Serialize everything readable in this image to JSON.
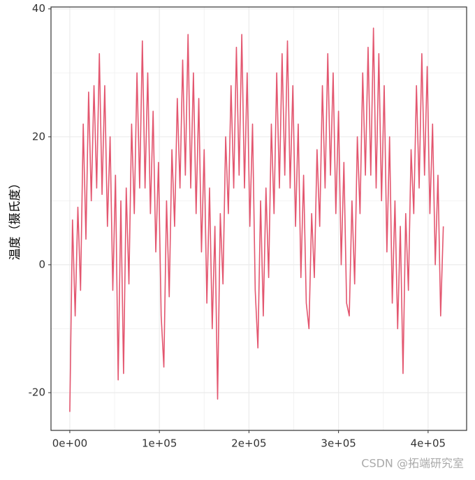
{
  "chart_data": {
    "type": "line",
    "ylabel": "温度（摄氏度）",
    "watermark": "CSDN @拓端研究室",
    "color": "#e3566f",
    "grid": true,
    "xlim": [
      -21000,
      443000
    ],
    "ylim": [
      -25.9,
      40.3
    ],
    "xticks": [
      {
        "value": 0,
        "label": "0e+00"
      },
      {
        "value": 100000,
        "label": "1e+05"
      },
      {
        "value": 200000,
        "label": "2e+05"
      },
      {
        "value": 300000,
        "label": "3e+05"
      },
      {
        "value": 400000,
        "label": "4e+05"
      }
    ],
    "yticks": [
      -20,
      0,
      20,
      40
    ],
    "x": [
      0,
      3000,
      6000,
      9000,
      12000,
      15000,
      18000,
      21000,
      24000,
      27000,
      30000,
      33000,
      36000,
      39000,
      42000,
      45000,
      48000,
      51000,
      54000,
      57000,
      60000,
      63000,
      66000,
      69000,
      72000,
      75000,
      78000,
      81000,
      84000,
      87000,
      90000,
      93000,
      96000,
      99000,
      102000,
      105000,
      108000,
      111000,
      114000,
      117000,
      120000,
      123000,
      126000,
      129000,
      132000,
      135000,
      138000,
      141000,
      144000,
      147000,
      150000,
      153000,
      156000,
      159000,
      162000,
      165000,
      168000,
      171000,
      174000,
      177000,
      180000,
      183000,
      186000,
      189000,
      192000,
      195000,
      198000,
      201000,
      204000,
      207000,
      210000,
      213000,
      216000,
      219000,
      222000,
      225000,
      228000,
      231000,
      234000,
      237000,
      240000,
      243000,
      246000,
      249000,
      252000,
      255000,
      258000,
      261000,
      264000,
      267000,
      270000,
      273000,
      276000,
      279000,
      282000,
      285000,
      288000,
      291000,
      294000,
      297000,
      300000,
      303000,
      306000,
      309000,
      312000,
      315000,
      318000,
      321000,
      324000,
      327000,
      330000,
      333000,
      336000,
      339000,
      342000,
      345000,
      348000,
      351000,
      354000,
      357000,
      360000,
      363000,
      366000,
      369000,
      372000,
      375000,
      378000,
      381000,
      384000,
      387000,
      390000,
      393000,
      396000,
      399000,
      402000,
      405000,
      408000,
      411000,
      414000,
      417000
    ],
    "values": [
      -23,
      7,
      -8,
      9,
      -4,
      22,
      4,
      27,
      10,
      28,
      12,
      33,
      11,
      28,
      6,
      20,
      -4,
      14,
      -18,
      10,
      -17,
      12,
      -3,
      22,
      8,
      30,
      12,
      35,
      12,
      30,
      8,
      24,
      2,
      16,
      -8,
      -16,
      10,
      -5,
      18,
      6,
      26,
      12,
      32,
      14,
      36,
      12,
      30,
      8,
      26,
      2,
      18,
      -6,
      12,
      -10,
      6,
      -21,
      8,
      -3,
      20,
      8,
      28,
      12,
      34,
      14,
      36,
      12,
      30,
      6,
      22,
      -4,
      -13,
      10,
      -8,
      12,
      -2,
      22,
      8,
      30,
      12,
      33,
      14,
      35,
      12,
      28,
      6,
      22,
      -2,
      14,
      -6,
      -10,
      8,
      -2,
      18,
      6,
      28,
      12,
      33,
      14,
      30,
      8,
      24,
      0,
      16,
      -6,
      -8,
      10,
      -3,
      20,
      8,
      30,
      14,
      34,
      14,
      37,
      12,
      33,
      10,
      28,
      2,
      20,
      -6,
      10,
      -10,
      6,
      -17,
      8,
      -4,
      18,
      8,
      28,
      12,
      33,
      14,
      31,
      8,
      22,
      0,
      14,
      -8,
      6
    ]
  }
}
